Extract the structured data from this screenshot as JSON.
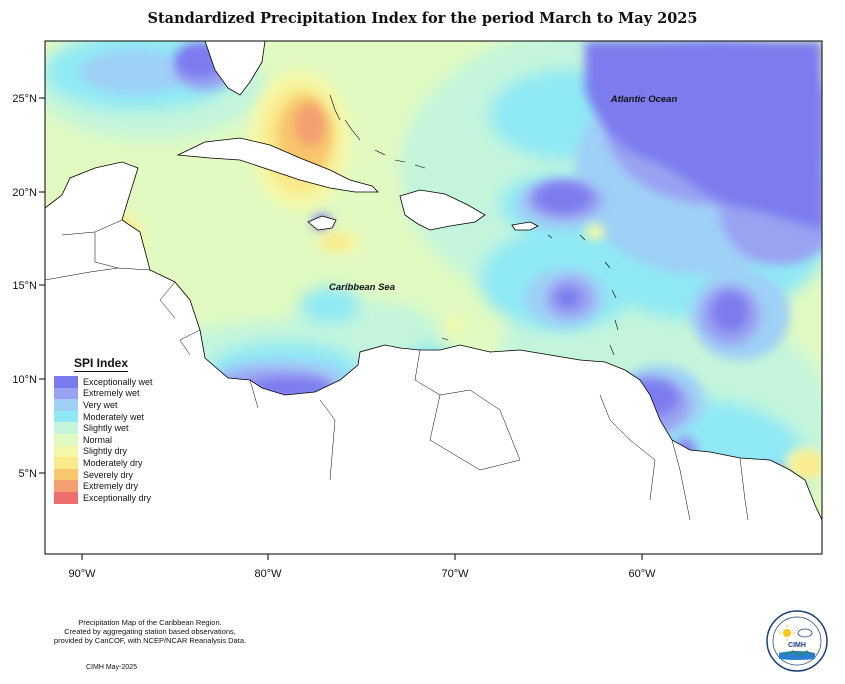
{
  "title": "Standardized Precipitation Index for the period March to May 2025",
  "axes": {
    "x_ticks": [
      "90°W",
      "80°W",
      "70°W",
      "60°W"
    ],
    "y_ticks": [
      "25°N",
      "20°N",
      "15°N",
      "10°N",
      "5°N"
    ]
  },
  "labels": {
    "atlantic": "Atlantic Ocean",
    "caribbean": "Caribbean Sea"
  },
  "legend": {
    "title": "SPI Index",
    "items": [
      {
        "label": "Exceptionally wet",
        "color": "#7b7bef"
      },
      {
        "label": "Extremely wet",
        "color": "#9aa2f2"
      },
      {
        "label": "Very wet",
        "color": "#9fd0f6"
      },
      {
        "label": "Moderately wet",
        "color": "#8fe9f5"
      },
      {
        "label": "Slightly wet",
        "color": "#c4f5dc"
      },
      {
        "label": "Normal",
        "color": "#e1fac1"
      },
      {
        "label": "Slightly dry",
        "color": "#f4f8a8"
      },
      {
        "label": "Moderately dry",
        "color": "#f9ea8c"
      },
      {
        "label": "Severely dry",
        "color": "#f8c66d"
      },
      {
        "label": "Extremely dry",
        "color": "#f3a070"
      },
      {
        "label": "Exceptionally dry",
        "color": "#ee6e6e"
      }
    ]
  },
  "footnote": {
    "line1": "Precipitation Map of the Caribbean Region.",
    "line2": "Created by aggregating station based observations,",
    "line3": "provided by CariCOF, with NCEP/NCAR Reanalysis Data."
  },
  "credit": "CIMH May-2025",
  "logo": {
    "text": "CIMH"
  }
}
